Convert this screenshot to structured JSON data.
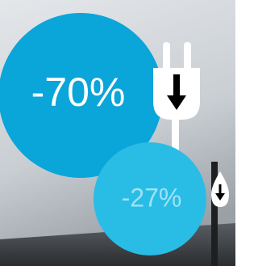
{
  "badges": [
    {
      "label": "-70%"
    },
    {
      "label": "-27%"
    }
  ]
}
